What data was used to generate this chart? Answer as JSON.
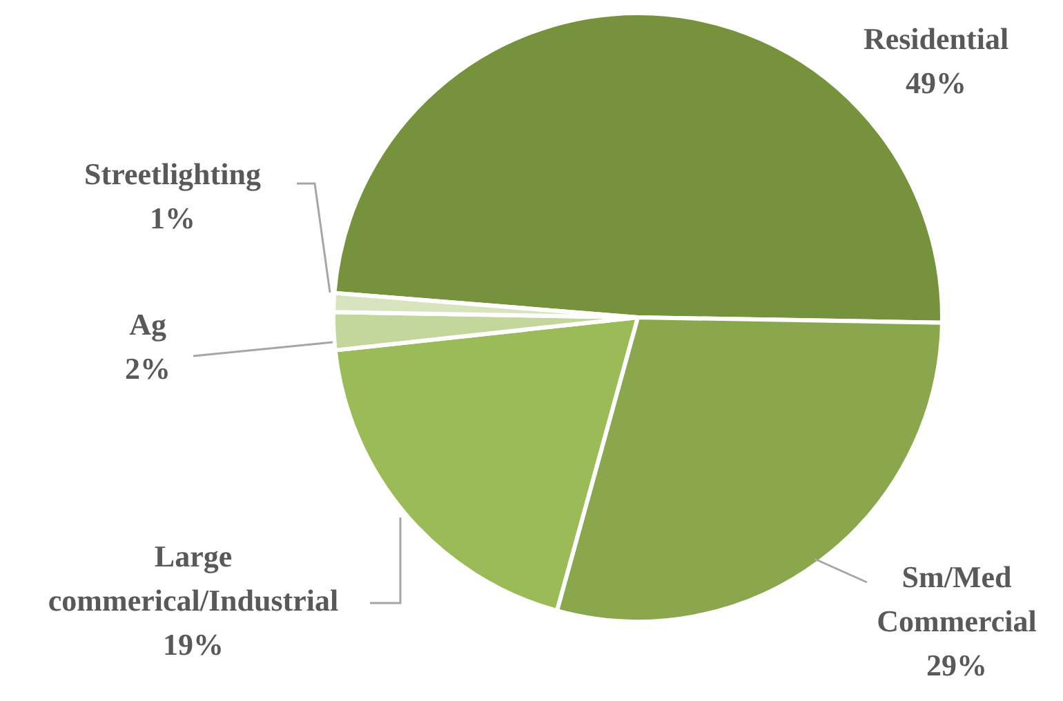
{
  "chart_data": {
    "type": "pie",
    "categories": [
      "Residential",
      "Sm/Med Commercial",
      "Large commerical/Industrial",
      "Ag",
      "Streetlighting"
    ],
    "values": [
      49,
      29,
      19,
      2,
      1
    ],
    "value_labels": [
      "49%",
      "29%",
      "19%",
      "2%",
      "1%"
    ],
    "colors": [
      "#76923c",
      "#8aa74e",
      "#9bbb59",
      "#c3d69b",
      "#d7e4bd"
    ]
  }
}
